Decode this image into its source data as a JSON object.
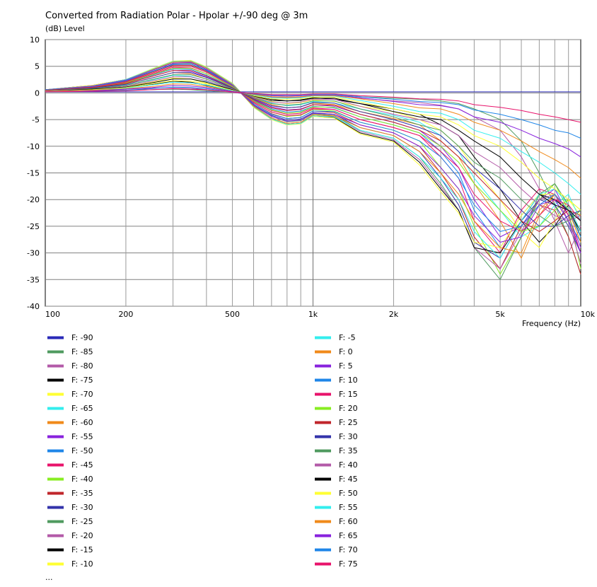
{
  "chart_data": {
    "type": "line",
    "title": "Converted from Radiation Polar - Hpolar +/-90 deg @ 3m",
    "ylabel": "(dB)  Level",
    "xlabel": "Frequency  (Hz)",
    "x_scale": "log",
    "xlim": [
      100,
      10000
    ],
    "ylim": [
      -40,
      10
    ],
    "grid": true,
    "legend_placement": "bottom",
    "legend_more": "...",
    "x_ticks": [
      {
        "value": 100,
        "label": "100"
      },
      {
        "value": 200,
        "label": "200"
      },
      {
        "value": 500,
        "label": "500"
      },
      {
        "value": 1000,
        "label": "1k"
      },
      {
        "value": 2000,
        "label": "2k"
      },
      {
        "value": 5000,
        "label": "5k"
      },
      {
        "value": 10000,
        "label": "10k"
      }
    ],
    "y_ticks": [
      10,
      5,
      0,
      -5,
      -10,
      -15,
      -20,
      -25,
      -30,
      -35,
      -40
    ],
    "x": [
      100,
      150,
      200,
      250,
      300,
      350,
      400,
      500,
      600,
      700,
      800,
      900,
      1000,
      1200,
      1500,
      2000,
      2500,
      3000,
      3500,
      4000,
      5000,
      6000,
      7000,
      8000,
      9000,
      10000
    ],
    "series": [
      {
        "name": "F: -90",
        "color": "#2a2ab8",
        "values": [
          0.2,
          0.2,
          0.2,
          0.2,
          0.2,
          0.2,
          0.2,
          0.2,
          0.2,
          0.2,
          0.2,
          0.2,
          0.2,
          0.2,
          0.2,
          0.2,
          0.2,
          0.2,
          0.2,
          0.2,
          0.2,
          0.2,
          0.2,
          0.2,
          0.2,
          0.2
        ]
      },
      {
        "name": "F: -85",
        "color": "#4f9a5f",
        "values": [
          0.3,
          0.4,
          0.5,
          0.6,
          0.7,
          0.6,
          0.4,
          0.1,
          -0.3,
          -0.5,
          -0.6,
          -0.5,
          -0.3,
          -0.4,
          -0.7,
          -1,
          -1.2,
          -1.5,
          -2,
          -3,
          -5,
          -9,
          -15,
          -21,
          -27,
          -34
        ]
      },
      {
        "name": "F: -80",
        "color": "#b35aa8",
        "values": [
          0.3,
          0.5,
          0.7,
          0.9,
          1.0,
          0.9,
          0.6,
          0.1,
          -0.4,
          -0.8,
          -0.9,
          -0.8,
          -0.5,
          -0.6,
          -1,
          -1.5,
          -1.8,
          -2.3,
          -3,
          -4.5,
          -7,
          -12,
          -18,
          -24,
          -30,
          -25
        ]
      },
      {
        "name": "F: -75",
        "color": "#000000",
        "values": [
          0.4,
          0.7,
          1.1,
          1.6,
          2.2,
          2.0,
          1.4,
          0.4,
          -0.5,
          -1.2,
          -1.5,
          -1.3,
          -0.9,
          -1.2,
          -2,
          -3,
          -4,
          -6,
          -8,
          -12,
          -18,
          -24,
          -28,
          -25,
          -21,
          -27
        ]
      },
      {
        "name": "F: -70",
        "color": "#ffff33",
        "values": [
          0.4,
          0.8,
          1.3,
          2.0,
          2.8,
          2.6,
          1.8,
          0.5,
          -0.7,
          -1.6,
          -2.0,
          -1.8,
          -1.3,
          -1.6,
          -2.5,
          -3.5,
          -5,
          -7,
          -10,
          -14,
          -20,
          -26,
          -29,
          -24,
          -20,
          -23
        ]
      },
      {
        "name": "F: -65",
        "color": "#33eeee",
        "values": [
          0.5,
          0.9,
          1.5,
          2.4,
          3.3,
          3.1,
          2.2,
          0.7,
          -0.8,
          -1.9,
          -2.4,
          -2.2,
          -1.6,
          -1.9,
          -3,
          -4.2,
          -5.5,
          -8,
          -11,
          -16,
          -22,
          -27,
          -25,
          -21,
          -19,
          -24
        ]
      },
      {
        "name": "F: -60",
        "color": "#f08a1a",
        "values": [
          0.5,
          1.0,
          1.7,
          2.8,
          3.8,
          3.6,
          2.6,
          0.8,
          -1.0,
          -2.2,
          -2.8,
          -2.6,
          -1.9,
          -2.2,
          -3.5,
          -4.8,
          -6,
          -9,
          -12,
          -17,
          -24,
          -31,
          -23,
          -19,
          -22,
          -27
        ]
      },
      {
        "name": "F: -55",
        "color": "#8822dd",
        "values": [
          0.5,
          1.0,
          1.8,
          3.1,
          4.2,
          4.0,
          3.0,
          1.0,
          -1.2,
          -2.6,
          -3.2,
          -3.0,
          -2.2,
          -2.5,
          -4,
          -5.5,
          -7,
          -10,
          -14,
          -20,
          -27,
          -25,
          -20,
          -18,
          -23,
          -29
        ]
      },
      {
        "name": "F: -50",
        "color": "#1f86e8",
        "values": [
          0.5,
          1.1,
          1.9,
          3.3,
          4.5,
          4.4,
          3.3,
          1.1,
          -1.4,
          -3.0,
          -3.6,
          -3.4,
          -2.5,
          -2.8,
          -4.5,
          -6,
          -7.5,
          -11,
          -15,
          -22,
          -29,
          -23,
          -19,
          -20,
          -24,
          -28
        ]
      },
      {
        "name": "F: -45",
        "color": "#e8136b",
        "values": [
          0.6,
          1.1,
          2.0,
          3.5,
          4.8,
          4.7,
          3.6,
          1.2,
          -1.6,
          -3.3,
          -4.0,
          -3.8,
          -2.8,
          -3.1,
          -5,
          -6.5,
          -8,
          -12,
          -16,
          -24,
          -30,
          -22,
          -18,
          -19,
          -23,
          -30
        ]
      },
      {
        "name": "F: -40",
        "color": "#88ee22",
        "values": [
          0.6,
          1.2,
          2.1,
          3.7,
          5.0,
          5.0,
          3.9,
          1.3,
          -1.8,
          -3.6,
          -4.4,
          -4.2,
          -3.1,
          -3.4,
          -5.5,
          -7,
          -9,
          -14,
          -18,
          -25,
          -34,
          -27,
          -20,
          -17,
          -22,
          -33
        ]
      },
      {
        "name": "F: -35",
        "color": "#c0262b",
        "values": [
          0.6,
          1.2,
          2.2,
          3.9,
          5.2,
          5.2,
          4.1,
          1.4,
          -2.0,
          -3.9,
          -4.8,
          -4.6,
          -3.4,
          -3.7,
          -6,
          -7.5,
          -10,
          -15,
          -20,
          -27,
          -33,
          -25,
          -21,
          -22,
          -27,
          -34
        ]
      },
      {
        "name": "F: -30",
        "color": "#3333aa",
        "values": [
          0.6,
          1.3,
          2.3,
          4.0,
          5.4,
          5.4,
          4.3,
          1.5,
          -2.2,
          -4.2,
          -5.1,
          -4.9,
          -3.7,
          -4.0,
          -6.5,
          -8,
          -11,
          -16,
          -21,
          -28,
          -31,
          -24,
          -20,
          -21,
          -25,
          -30
        ]
      },
      {
        "name": "F: -25",
        "color": "#4f9a5f",
        "values": [
          0.6,
          1.3,
          2.4,
          4.2,
          5.6,
          5.6,
          4.5,
          1.6,
          -2.4,
          -4.4,
          -5.4,
          -5.2,
          -3.9,
          -4.2,
          -7,
          -8.5,
          -12,
          -17,
          -22,
          -29,
          -35,
          -27,
          -19,
          -17,
          -21,
          -27
        ]
      },
      {
        "name": "F: -20",
        "color": "#b35aa8",
        "values": [
          0.6,
          1.3,
          2.4,
          4.3,
          5.8,
          5.8,
          4.7,
          1.7,
          -2.5,
          -4.7,
          -5.7,
          -5.5,
          -4.1,
          -4.4,
          -7.2,
          -8.8,
          -12.5,
          -17.5,
          -22,
          -29,
          -33,
          -26,
          -20,
          -19,
          -24,
          -32
        ]
      },
      {
        "name": "F: -15",
        "color": "#000000",
        "values": [
          0.6,
          1.4,
          2.5,
          4.4,
          5.9,
          6.0,
          4.8,
          1.8,
          -2.6,
          -4.9,
          -5.9,
          -5.7,
          -4.3,
          -4.6,
          -7.5,
          -9,
          -13,
          -18,
          -22,
          -29,
          -30,
          -24,
          -19,
          -20,
          -22,
          -26
        ]
      },
      {
        "name": "F: -10",
        "color": "#ffff33",
        "values": [
          0.6,
          1.4,
          2.5,
          4.5,
          6.0,
          6.1,
          4.9,
          1.8,
          -2.7,
          -5.0,
          -6.0,
          -5.8,
          -4.4,
          -4.7,
          -7.7,
          -9.2,
          -13.5,
          -18.5,
          -22.5,
          -28,
          -29,
          -23,
          -19,
          -19,
          -22,
          -28
        ]
      },
      {
        "name": "F: -5",
        "color": "#33eeee",
        "values": [
          0.6,
          1.3,
          2.5,
          4.4,
          5.9,
          6.0,
          4.8,
          1.7,
          -2.6,
          -4.9,
          -5.9,
          -5.7,
          -4.3,
          -4.5,
          -7,
          -8.5,
          -12,
          -16,
          -20,
          -26,
          -31,
          -24,
          -19,
          -18,
          -21,
          -26
        ]
      },
      {
        "name": "F: 0",
        "color": "#f08a1a",
        "values": [
          0.6,
          1.3,
          2.4,
          4.3,
          5.8,
          5.9,
          4.7,
          1.6,
          -2.5,
          -4.7,
          -5.7,
          -5.5,
          -4.1,
          -4.3,
          -6.5,
          -8,
          -11,
          -15,
          -19,
          -24,
          -29,
          -30,
          -22,
          -19,
          -22,
          -28
        ]
      },
      {
        "name": "F: 5",
        "color": "#8822dd",
        "values": [
          0.6,
          1.3,
          2.4,
          4.2,
          5.6,
          5.7,
          4.5,
          1.5,
          -2.3,
          -4.4,
          -5.3,
          -5.1,
          -3.8,
          -4.0,
          -6,
          -7.5,
          -10,
          -14,
          -18,
          -23,
          -28,
          -27,
          -21,
          -20,
          -24,
          -30
        ]
      },
      {
        "name": "F: 10",
        "color": "#1f86e8",
        "values": [
          0.6,
          1.2,
          2.3,
          4.0,
          5.3,
          5.4,
          4.2,
          1.4,
          -2.0,
          -4.0,
          -4.8,
          -4.6,
          -3.4,
          -3.5,
          -5.5,
          -7,
          -9,
          -12,
          -16,
          -21,
          -26,
          -25,
          -21,
          -19,
          -22,
          -27
        ]
      },
      {
        "name": "F: 15",
        "color": "#e8136b",
        "values": [
          0.5,
          1.1,
          2.1,
          3.7,
          5.0,
          5.0,
          3.9,
          1.3,
          -1.8,
          -3.6,
          -4.3,
          -4.1,
          -3.0,
          -3.1,
          -5,
          -6.5,
          -8,
          -11,
          -14,
          -19,
          -24,
          -26,
          -23,
          -20,
          -21,
          -24
        ]
      },
      {
        "name": "F: 20",
        "color": "#88ee22",
        "values": [
          0.5,
          1.0,
          1.9,
          3.4,
          4.6,
          4.6,
          3.6,
          1.2,
          -1.5,
          -3.2,
          -3.8,
          -3.6,
          -2.6,
          -2.7,
          -4.5,
          -6,
          -7.5,
          -10,
          -13,
          -17,
          -22,
          -26,
          -25,
          -22,
          -20,
          -22
        ]
      },
      {
        "name": "F: 25",
        "color": "#c0262b",
        "values": [
          0.5,
          1.0,
          1.8,
          3.1,
          4.2,
          4.2,
          3.2,
          1.0,
          -1.3,
          -2.8,
          -3.3,
          -3.1,
          -2.2,
          -2.3,
          -4,
          -5.5,
          -7,
          -9,
          -12,
          -15,
          -20,
          -24,
          -26,
          -24,
          -22,
          -23
        ]
      },
      {
        "name": "F: 30",
        "color": "#3333aa",
        "values": [
          0.4,
          0.9,
          1.6,
          2.8,
          3.8,
          3.8,
          2.9,
          0.9,
          -1.1,
          -2.4,
          -2.8,
          -2.6,
          -1.8,
          -1.9,
          -3.5,
          -5,
          -6.5,
          -8,
          -11,
          -14,
          -18,
          -22,
          -25,
          -25,
          -23,
          -22
        ]
      },
      {
        "name": "F: 35",
        "color": "#4f9a5f",
        "values": [
          0.4,
          0.8,
          1.4,
          2.5,
          3.4,
          3.4,
          2.6,
          0.8,
          -0.9,
          -2.0,
          -2.3,
          -2.1,
          -1.5,
          -1.5,
          -3,
          -4.5,
          -6,
          -7,
          -10,
          -13,
          -16,
          -20,
          -23,
          -25,
          -24,
          -22
        ]
      },
      {
        "name": "F: 40",
        "color": "#b35aa8",
        "values": [
          0.4,
          0.7,
          1.3,
          2.2,
          3.0,
          3.0,
          2.3,
          0.7,
          -0.8,
          -1.7,
          -1.9,
          -1.7,
          -1.2,
          -1.2,
          -2.5,
          -4,
          -5,
          -6,
          -8,
          -11,
          -14,
          -18,
          -21,
          -23,
          -24,
          -23
        ]
      },
      {
        "name": "F: 45",
        "color": "#000000",
        "values": [
          0.3,
          0.7,
          1.1,
          1.9,
          2.6,
          2.6,
          2.0,
          0.6,
          -0.6,
          -1.4,
          -1.5,
          -1.4,
          -1.0,
          -1.0,
          -2,
          -3.5,
          -4.5,
          -5,
          -7,
          -9,
          -12,
          -16,
          -19,
          -21,
          -22,
          -24
        ]
      },
      {
        "name": "F: 50",
        "color": "#ffff33",
        "values": [
          0.3,
          0.6,
          1.0,
          1.7,
          2.3,
          2.2,
          1.7,
          0.5,
          -0.5,
          -1.1,
          -1.2,
          -1.1,
          -0.8,
          -0.8,
          -1.7,
          -3,
          -4,
          -4.5,
          -6,
          -8,
          -10,
          -13,
          -16,
          -18,
          -20,
          -22
        ]
      },
      {
        "name": "F: 55",
        "color": "#33eeee",
        "values": [
          0.3,
          0.5,
          0.9,
          1.5,
          2.0,
          1.9,
          1.5,
          0.4,
          -0.4,
          -0.9,
          -1.0,
          -0.9,
          -0.6,
          -0.6,
          -1.4,
          -2.5,
          -3.5,
          -3.8,
          -5,
          -7,
          -8.5,
          -11,
          -13,
          -15,
          -17,
          -19
        ]
      },
      {
        "name": "F: 60",
        "color": "#f08a1a",
        "values": [
          0.3,
          0.5,
          0.8,
          1.2,
          1.7,
          1.6,
          1.2,
          0.3,
          -0.3,
          -0.7,
          -0.8,
          -0.7,
          -0.5,
          -0.5,
          -1.1,
          -2,
          -2.8,
          -3,
          -4,
          -5.5,
          -7,
          -9,
          -11,
          -12.5,
          -14,
          -16
        ]
      },
      {
        "name": "F: 65",
        "color": "#8822dd",
        "values": [
          0.2,
          0.4,
          0.7,
          1.0,
          1.4,
          1.3,
          1.0,
          0.3,
          -0.2,
          -0.5,
          -0.6,
          -0.5,
          -0.4,
          -0.4,
          -0.9,
          -1.6,
          -2.2,
          -2.4,
          -3,
          -4.5,
          -5.5,
          -7,
          -8.5,
          -9.5,
          -10.5,
          -12
        ]
      },
      {
        "name": "F: 70",
        "color": "#1f86e8",
        "values": [
          0.2,
          0.3,
          0.5,
          0.8,
          1.1,
          1.0,
          0.8,
          0.2,
          -0.2,
          -0.4,
          -0.4,
          -0.4,
          -0.3,
          -0.3,
          -0.7,
          -1.2,
          -1.6,
          -1.8,
          -2.2,
          -3.2,
          -4,
          -5,
          -6,
          -7,
          -7.5,
          -8.5
        ]
      },
      {
        "name": "F: 75",
        "color": "#e8136b",
        "values": [
          0.2,
          0.3,
          0.4,
          0.6,
          0.8,
          0.7,
          0.6,
          0.2,
          -0.1,
          -0.3,
          -0.3,
          -0.3,
          -0.2,
          -0.2,
          -0.5,
          -0.8,
          -1.1,
          -1.2,
          -1.5,
          -2.2,
          -2.7,
          -3.3,
          -4,
          -4.5,
          -5,
          -5.5
        ]
      }
    ]
  }
}
